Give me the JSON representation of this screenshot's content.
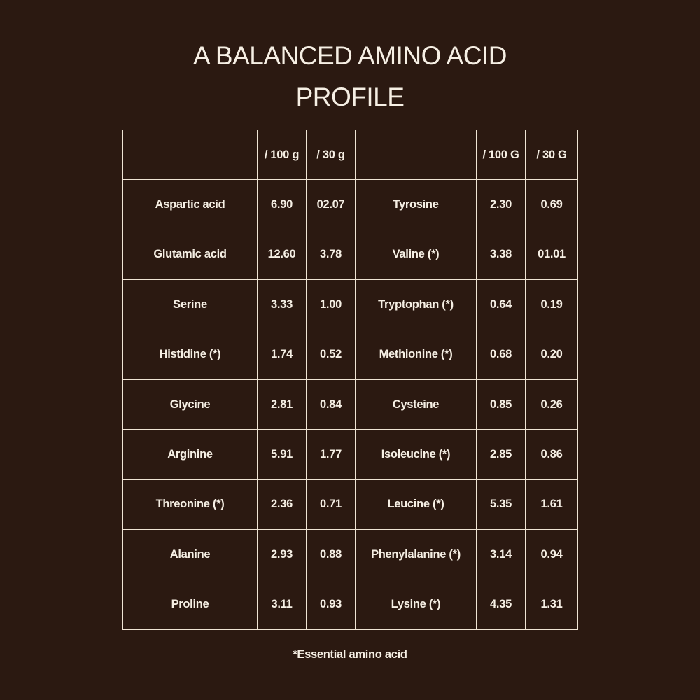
{
  "title": {
    "line1": "A BALANCED AMINO ACID",
    "line2": "PROFILE"
  },
  "table": {
    "headers": [
      "",
      "/ 100 g",
      "/ 30 g",
      "",
      "/ 100 G",
      "/ 30 G"
    ],
    "rows": [
      [
        "Aspartic acid",
        "6.90",
        "02.07",
        "Tyrosine",
        "2.30",
        "0.69"
      ],
      [
        "Glutamic acid",
        "12.60",
        "3.78",
        "Valine (*)",
        "3.38",
        "01.01"
      ],
      [
        "Serine",
        "3.33",
        "1.00",
        "Tryptophan (*)",
        "0.64",
        "0.19"
      ],
      [
        "Histidine (*)",
        "1.74",
        "0.52",
        "Methionine (*)",
        "0.68",
        "0.20"
      ],
      [
        "Glycine",
        "2.81",
        "0.84",
        "Cysteine",
        "0.85",
        "0.26"
      ],
      [
        "Arginine",
        "5.91",
        "1.77",
        "Isoleucine (*)",
        "2.85",
        "0.86"
      ],
      [
        "Threonine (*)",
        "2.36",
        "0.71",
        "Leucine (*)",
        "5.35",
        "1.61"
      ],
      [
        "Alanine",
        "2.93",
        "0.88",
        "Phenylalanine (*)",
        "3.14",
        "0.94"
      ],
      [
        "Proline",
        "3.11",
        "0.93",
        "Lysine (*)",
        "4.35",
        "1.31"
      ]
    ]
  },
  "footnote": "*Essential amino acid"
}
